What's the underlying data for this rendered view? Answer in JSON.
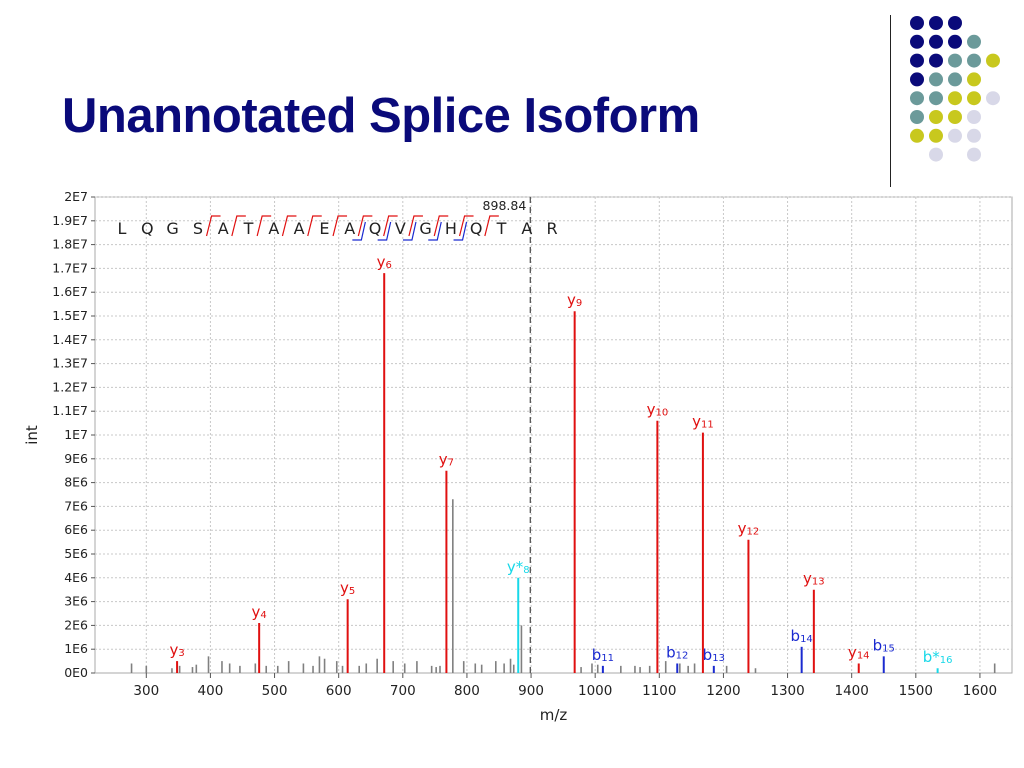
{
  "slide": {
    "title": "Unannotated Splice Isoform",
    "colors": {
      "title": "#0a0a7a",
      "navy": "#0a0a7a",
      "teal": "#6b9a9a",
      "olive": "#c8c81e",
      "lavender": "#d8d8e8"
    },
    "decor_dots": [
      [
        "navy",
        "navy",
        "navy",
        null
      ],
      [
        "navy",
        "navy",
        "navy",
        "teal"
      ],
      [
        "navy",
        "navy",
        "teal",
        "teal",
        "olive"
      ],
      [
        "navy",
        "teal",
        "teal",
        "olive",
        null
      ],
      [
        "teal",
        "teal",
        "olive",
        "olive",
        "lavender"
      ],
      [
        "teal",
        "olive",
        "olive",
        "lavender",
        null
      ],
      [
        "olive",
        "olive",
        "lavender",
        "lavender",
        null
      ],
      [
        null,
        "lavender",
        null,
        "lavender",
        null
      ]
    ]
  },
  "chart_data": {
    "type": "bar",
    "xlabel": "m/z",
    "ylabel": "int",
    "xlim": [
      220,
      1650
    ],
    "ylim": [
      0,
      20000000
    ],
    "x_ticks": [
      300,
      400,
      500,
      600,
      700,
      800,
      900,
      1000,
      1100,
      1200,
      1300,
      1400,
      1500,
      1600
    ],
    "y_ticks": [
      "0E0",
      "1E6",
      "2E6",
      "3E6",
      "4E6",
      "5E6",
      "6E6",
      "7E6",
      "8E6",
      "9E6",
      "1E7",
      "1.1E7",
      "1.2E7",
      "1.3E7",
      "1.4E7",
      "1.5E7",
      "1.6E7",
      "1.7E7",
      "1.8E7",
      "1.9E7",
      "2E7"
    ],
    "grid": true,
    "precursor": {
      "x": 898.84,
      "label": "898.84"
    },
    "sequence": [
      "L",
      "Q",
      "G",
      "S",
      "A",
      "T",
      "A",
      "A",
      "E",
      "A",
      "Q",
      "V",
      "G",
      "H",
      "Q",
      "T",
      "A",
      "R"
    ],
    "y_ion_marks_after": [
      4,
      5,
      6,
      7,
      8,
      9,
      10,
      11,
      12,
      13,
      14,
      15
    ],
    "b_ion_marks_after": [
      10,
      11,
      12,
      13,
      14
    ],
    "colors": {
      "y": "#e01010",
      "b": "#1a2ad0",
      "star": "#18d8e8",
      "unassigned": "#808080"
    },
    "labeled_peaks": [
      {
        "ion": "y",
        "sub": "3",
        "x": 348,
        "y": 500000,
        "color": "#e01010"
      },
      {
        "ion": "y",
        "sub": "4",
        "x": 476,
        "y": 2100000,
        "color": "#e01010"
      },
      {
        "ion": "y",
        "sub": "5",
        "x": 614,
        "y": 3100000,
        "color": "#e01010"
      },
      {
        "ion": "y",
        "sub": "6",
        "x": 671,
        "y": 16800000,
        "color": "#e01010"
      },
      {
        "ion": "y",
        "sub": "7",
        "x": 768,
        "y": 8500000,
        "color": "#e01010"
      },
      {
        "ion": "y*",
        "sub": "8",
        "x": 880,
        "y": 4000000,
        "color": "#18d8e8"
      },
      {
        "ion": "y",
        "sub": "9",
        "x": 968,
        "y": 15200000,
        "color": "#e01010"
      },
      {
        "ion": "b",
        "sub": "11",
        "x": 1012,
        "y": 300000,
        "color": "#1a2ad0"
      },
      {
        "ion": "y",
        "sub": "10",
        "x": 1097,
        "y": 10600000,
        "color": "#e01010"
      },
      {
        "ion": "b",
        "sub": "12",
        "x": 1128,
        "y": 400000,
        "color": "#1a2ad0"
      },
      {
        "ion": "y",
        "sub": "11",
        "x": 1168,
        "y": 10100000,
        "color": "#e01010"
      },
      {
        "ion": "b",
        "sub": "13",
        "x": 1185,
        "y": 300000,
        "color": "#1a2ad0"
      },
      {
        "ion": "y",
        "sub": "12",
        "x": 1239,
        "y": 5600000,
        "color": "#e01010"
      },
      {
        "ion": "b",
        "sub": "14",
        "x": 1322,
        "y": 1100000,
        "color": "#1a2ad0"
      },
      {
        "ion": "y",
        "sub": "13",
        "x": 1341,
        "y": 3500000,
        "color": "#e01010"
      },
      {
        "ion": "y",
        "sub": "14",
        "x": 1411,
        "y": 400000,
        "color": "#e01010"
      },
      {
        "ion": "b",
        "sub": "15",
        "x": 1450,
        "y": 700000,
        "color": "#1a2ad0"
      },
      {
        "ion": "b*",
        "sub": "16",
        "x": 1534,
        "y": 200000,
        "color": "#18d8e8"
      }
    ],
    "unassigned_peaks": [
      {
        "x": 277,
        "y": 400000
      },
      {
        "x": 300,
        "y": 300000
      },
      {
        "x": 340,
        "y": 200000
      },
      {
        "x": 352,
        "y": 300000
      },
      {
        "x": 372,
        "y": 250000
      },
      {
        "x": 378,
        "y": 350000
      },
      {
        "x": 397,
        "y": 700000
      },
      {
        "x": 418,
        "y": 500000
      },
      {
        "x": 430,
        "y": 400000
      },
      {
        "x": 446,
        "y": 300000
      },
      {
        "x": 470,
        "y": 400000
      },
      {
        "x": 487,
        "y": 300000
      },
      {
        "x": 505,
        "y": 300000
      },
      {
        "x": 522,
        "y": 500000
      },
      {
        "x": 545,
        "y": 400000
      },
      {
        "x": 560,
        "y": 300000
      },
      {
        "x": 570,
        "y": 700000
      },
      {
        "x": 578,
        "y": 600000
      },
      {
        "x": 597,
        "y": 500000
      },
      {
        "x": 606,
        "y": 300000
      },
      {
        "x": 632,
        "y": 300000
      },
      {
        "x": 643,
        "y": 400000
      },
      {
        "x": 660,
        "y": 600000
      },
      {
        "x": 685,
        "y": 500000
      },
      {
        "x": 703,
        "y": 400000
      },
      {
        "x": 722,
        "y": 500000
      },
      {
        "x": 745,
        "y": 300000
      },
      {
        "x": 752,
        "y": 250000
      },
      {
        "x": 758,
        "y": 300000
      },
      {
        "x": 778,
        "y": 7300000
      },
      {
        "x": 795,
        "y": 500000
      },
      {
        "x": 813,
        "y": 400000
      },
      {
        "x": 823,
        "y": 350000
      },
      {
        "x": 845,
        "y": 500000
      },
      {
        "x": 858,
        "y": 400000
      },
      {
        "x": 868,
        "y": 600000
      },
      {
        "x": 873,
        "y": 350000
      },
      {
        "x": 885,
        "y": 2000000
      },
      {
        "x": 978,
        "y": 250000
      },
      {
        "x": 995,
        "y": 400000
      },
      {
        "x": 1004,
        "y": 350000
      },
      {
        "x": 1040,
        "y": 300000
      },
      {
        "x": 1062,
        "y": 300000
      },
      {
        "x": 1070,
        "y": 250000
      },
      {
        "x": 1085,
        "y": 300000
      },
      {
        "x": 1110,
        "y": 500000
      },
      {
        "x": 1132,
        "y": 400000
      },
      {
        "x": 1145,
        "y": 300000
      },
      {
        "x": 1155,
        "y": 400000
      },
      {
        "x": 1205,
        "y": 300000
      },
      {
        "x": 1250,
        "y": 200000
      },
      {
        "x": 1623,
        "y": 400000
      }
    ]
  }
}
